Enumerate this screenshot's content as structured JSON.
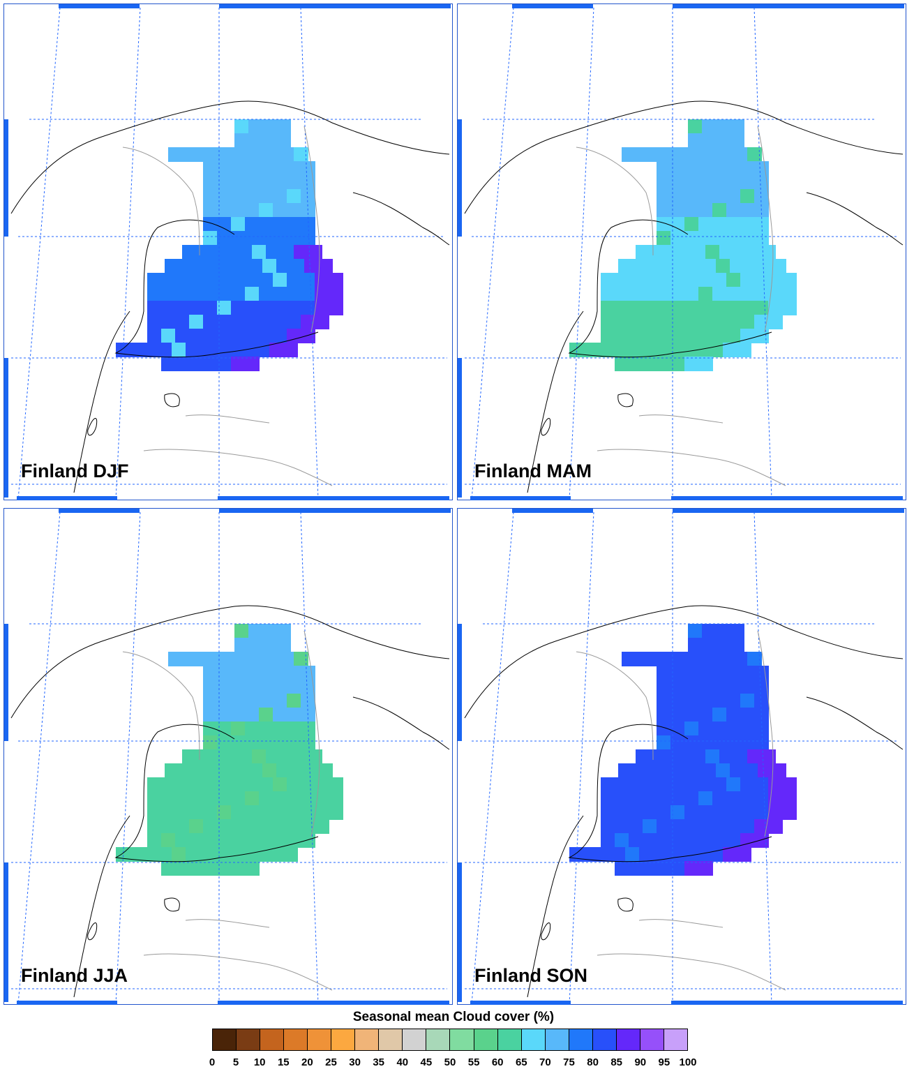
{
  "panels": [
    {
      "label": "Finland DJF",
      "season": "DJF"
    },
    {
      "label": "Finland MAM",
      "season": "MAM"
    },
    {
      "label": "Finland JJA",
      "season": "JJA"
    },
    {
      "label": "Finland SON",
      "season": "SON"
    }
  ],
  "colorbar": {
    "title": "Seasonal mean Cloud cover (%)",
    "ticks": [
      "0",
      "5",
      "10",
      "15",
      "20",
      "25",
      "30",
      "35",
      "40",
      "45",
      "50",
      "55",
      "60",
      "65",
      "70",
      "75",
      "80",
      "85",
      "90",
      "95",
      "100"
    ],
    "colors": [
      "#4a2408",
      "#7a3c14",
      "#c4641e",
      "#dc7a28",
      "#ef9238",
      "#fca840",
      "#f0b478",
      "#e0c8a8",
      "#d2d2d2",
      "#a8d8b8",
      "#80dca0",
      "#5ad28c",
      "#4ad2a0",
      "#5ad8fa",
      "#58b8fa",
      "#2078fa",
      "#2850fa",
      "#6428fa",
      "#9650fa",
      "#c8a0fa"
    ]
  }
}
